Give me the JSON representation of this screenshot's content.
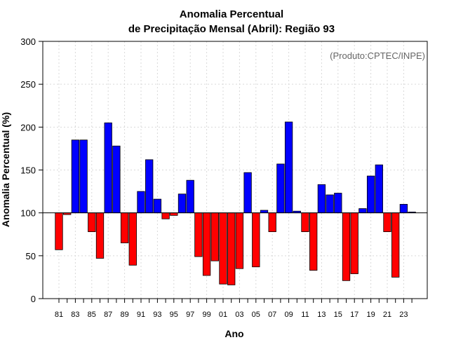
{
  "colors": {
    "positive": "#0000ff",
    "negative": "#ff0000",
    "baseline": "#000000",
    "grid": "#d9d9d9",
    "watermark": "#666666"
  },
  "chart_data": {
    "type": "bar",
    "title_line1": "Anomalia Percentual",
    "title_line2": "de Precipitação Mensal (Abril): Região 93",
    "xlabel": "Ano",
    "ylabel": "Anomalia Percentual (%)",
    "watermark": "(Produto:CPTEC/INPE)",
    "ylim": [
      0,
      300
    ],
    "yticks": [
      0,
      50,
      100,
      150,
      200,
      250,
      300
    ],
    "baseline": 100,
    "grid": true,
    "categories": [
      "81",
      "82",
      "83",
      "84",
      "85",
      "86",
      "87",
      "88",
      "89",
      "90",
      "91",
      "92",
      "93",
      "94",
      "95",
      "96",
      "97",
      "98",
      "99",
      "00",
      "01",
      "02",
      "03",
      "04",
      "05",
      "06",
      "07",
      "08",
      "09",
      "10",
      "11",
      "12",
      "13",
      "14",
      "15",
      "16",
      "17",
      "18",
      "19",
      "20",
      "21",
      "22",
      "23",
      "24"
    ],
    "tick_labels": [
      "81",
      "83",
      "85",
      "87",
      "89",
      "91",
      "93",
      "95",
      "97",
      "99",
      "01",
      "03",
      "05",
      "07",
      "09",
      "11",
      "13",
      "15",
      "17",
      "19",
      "21",
      "23"
    ],
    "values": [
      57,
      98,
      185,
      185,
      78,
      47,
      205,
      178,
      65,
      39,
      125,
      162,
      116,
      93,
      97,
      122,
      138,
      49,
      27,
      44,
      17,
      16,
      35,
      147,
      37,
      103,
      78,
      157,
      206,
      102,
      78,
      33,
      133,
      121,
      123,
      21,
      29,
      105,
      143,
      156,
      78,
      25,
      110,
      101
    ]
  }
}
